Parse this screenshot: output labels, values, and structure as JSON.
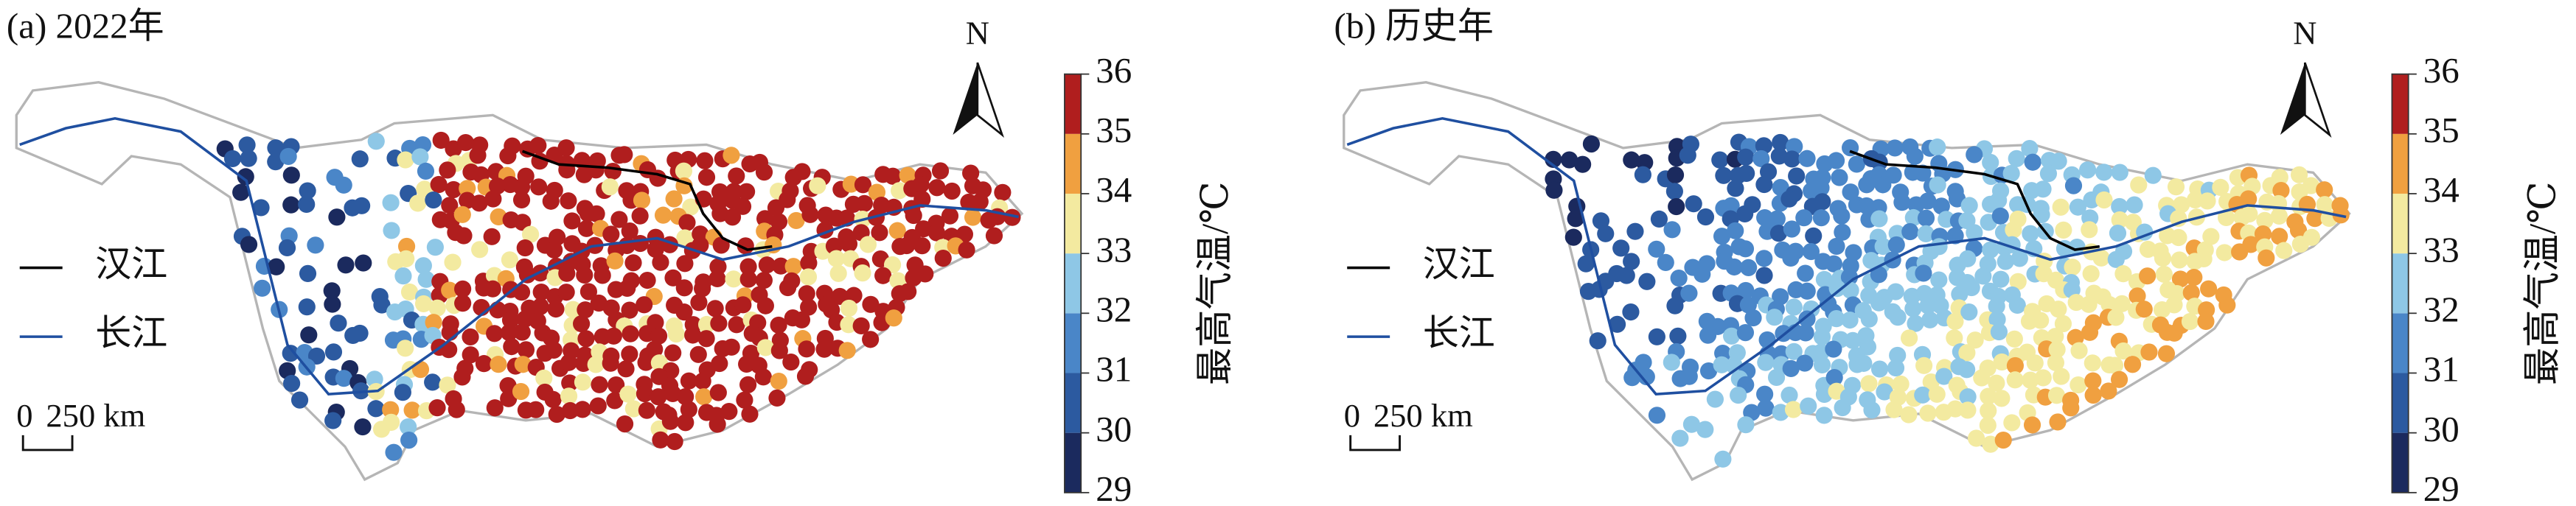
{
  "panels": [
    {
      "title": "(a) 2022年"
    },
    {
      "title": "(b) 历史年"
    }
  ],
  "north": "N",
  "legend": [
    {
      "label": "汉江",
      "color": "#000000"
    },
    {
      "label": "长江",
      "color": "#1f4fa0"
    }
  ],
  "scale_bar": {
    "start": "0",
    "label": "250 km"
  },
  "colorbar": {
    "label": "最高气温/℃",
    "ticks": [
      29,
      30,
      31,
      32,
      33,
      34,
      35,
      36
    ],
    "colors": [
      "#1b2a5e",
      "#2c5aa0",
      "#4a86c8",
      "#8ec7e6",
      "#f3eaa0",
      "#f0a040",
      "#b01e1e"
    ]
  }
}
